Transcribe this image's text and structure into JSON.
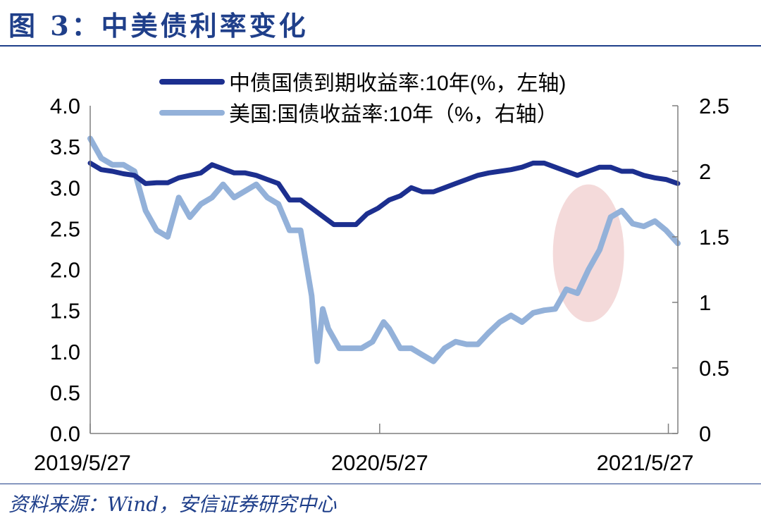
{
  "figure": {
    "title": "图 3：中美债利率变化",
    "source": "资料来源：Wind，安信证券研究中心"
  },
  "chart_data": {
    "type": "line",
    "x_tick_labels": [
      "2019/5/27",
      "2020/5/27",
      "2021/5/27"
    ],
    "x_range": [
      "2019/5/27",
      "2021/6/8"
    ],
    "y_left": {
      "range": [
        0,
        4.0
      ],
      "ticks": [
        "0.0",
        "0.5",
        "1.0",
        "1.5",
        "2.0",
        "2.5",
        "3.0",
        "3.5",
        "4.0"
      ]
    },
    "y_right": {
      "range": [
        0,
        2.5
      ],
      "ticks": [
        "0",
        "0.5",
        "1",
        "1.5",
        "2",
        "2.5"
      ]
    },
    "grid": false,
    "legend_position": "top-center",
    "highlight": {
      "shape": "ellipse",
      "color": "#f2d3d3",
      "x_range": [
        "2021/1/1",
        "2021/4/1"
      ],
      "y_right_range": [
        0.85,
        1.9
      ]
    },
    "series": [
      {
        "name": "中债国债到期收益率:10年(%，左轴)",
        "axis": "left",
        "color": "#1c2f8f",
        "x": [
          "2019/5/27",
          "2019/6/10",
          "2019/6/24",
          "2019/7/8",
          "2019/7/22",
          "2019/8/5",
          "2019/8/19",
          "2019/9/2",
          "2019/9/16",
          "2019/9/30",
          "2019/10/14",
          "2019/10/28",
          "2019/11/11",
          "2019/11/25",
          "2019/12/9",
          "2019/12/23",
          "2020/1/6",
          "2020/1/20",
          "2020/2/3",
          "2020/2/17",
          "2020/3/2",
          "2020/3/16",
          "2020/3/30",
          "2020/4/13",
          "2020/4/27",
          "2020/5/11",
          "2020/5/25",
          "2020/6/8",
          "2020/6/22",
          "2020/7/6",
          "2020/7/20",
          "2020/8/3",
          "2020/8/17",
          "2020/8/31",
          "2020/9/14",
          "2020/9/28",
          "2020/10/12",
          "2020/10/26",
          "2020/11/9",
          "2020/11/23",
          "2020/12/7",
          "2020/12/21",
          "2021/1/4",
          "2021/1/18",
          "2021/2/1",
          "2021/2/15",
          "2021/3/1",
          "2021/3/15",
          "2021/3/29",
          "2021/4/12",
          "2021/4/26",
          "2021/5/10",
          "2021/5/24",
          "2021/6/8"
        ],
        "values": [
          3.3,
          3.22,
          3.2,
          3.17,
          3.15,
          3.05,
          3.06,
          3.06,
          3.12,
          3.15,
          3.18,
          3.28,
          3.23,
          3.18,
          3.18,
          3.15,
          3.1,
          3.05,
          2.85,
          2.85,
          2.75,
          2.65,
          2.55,
          2.55,
          2.55,
          2.68,
          2.75,
          2.85,
          2.9,
          3.0,
          2.95,
          2.95,
          3.0,
          3.05,
          3.1,
          3.15,
          3.18,
          3.2,
          3.22,
          3.25,
          3.3,
          3.3,
          3.25,
          3.2,
          3.15,
          3.2,
          3.25,
          3.25,
          3.2,
          3.2,
          3.15,
          3.12,
          3.1,
          3.05
        ]
      },
      {
        "name": "美国:国债收益率:10年（%，右轴）",
        "axis": "right",
        "color": "#93b1d9",
        "x": [
          "2019/5/27",
          "2019/6/10",
          "2019/6/24",
          "2019/7/8",
          "2019/7/22",
          "2019/8/5",
          "2019/8/19",
          "2019/9/2",
          "2019/9/16",
          "2019/9/30",
          "2019/10/14",
          "2019/10/28",
          "2019/11/11",
          "2019/11/25",
          "2019/12/9",
          "2019/12/23",
          "2020/1/6",
          "2020/1/20",
          "2020/2/3",
          "2020/2/17",
          "2020/3/2",
          "2020/3/9",
          "2020/3/16",
          "2020/3/23",
          "2020/4/6",
          "2020/4/20",
          "2020/5/4",
          "2020/5/18",
          "2020/6/1",
          "2020/6/8",
          "2020/6/22",
          "2020/7/6",
          "2020/7/20",
          "2020/8/3",
          "2020/8/17",
          "2020/8/31",
          "2020/9/14",
          "2020/9/28",
          "2020/10/12",
          "2020/10/26",
          "2020/11/9",
          "2020/11/23",
          "2020/12/7",
          "2020/12/21",
          "2021/1/4",
          "2021/1/18",
          "2021/2/1",
          "2021/2/15",
          "2021/3/1",
          "2021/3/15",
          "2021/3/29",
          "2021/4/12",
          "2021/4/26",
          "2021/5/10",
          "2021/5/24",
          "2021/6/8"
        ],
        "values": [
          2.25,
          2.1,
          2.05,
          2.05,
          2.0,
          1.7,
          1.55,
          1.5,
          1.8,
          1.65,
          1.75,
          1.8,
          1.9,
          1.8,
          1.85,
          1.9,
          1.8,
          1.75,
          1.55,
          1.55,
          1.05,
          0.55,
          0.95,
          0.8,
          0.65,
          0.65,
          0.65,
          0.7,
          0.85,
          0.8,
          0.65,
          0.65,
          0.6,
          0.55,
          0.65,
          0.7,
          0.68,
          0.68,
          0.77,
          0.85,
          0.9,
          0.85,
          0.92,
          0.94,
          0.95,
          1.1,
          1.07,
          1.25,
          1.4,
          1.65,
          1.7,
          1.6,
          1.58,
          1.62,
          1.55,
          1.45
        ]
      }
    ]
  }
}
